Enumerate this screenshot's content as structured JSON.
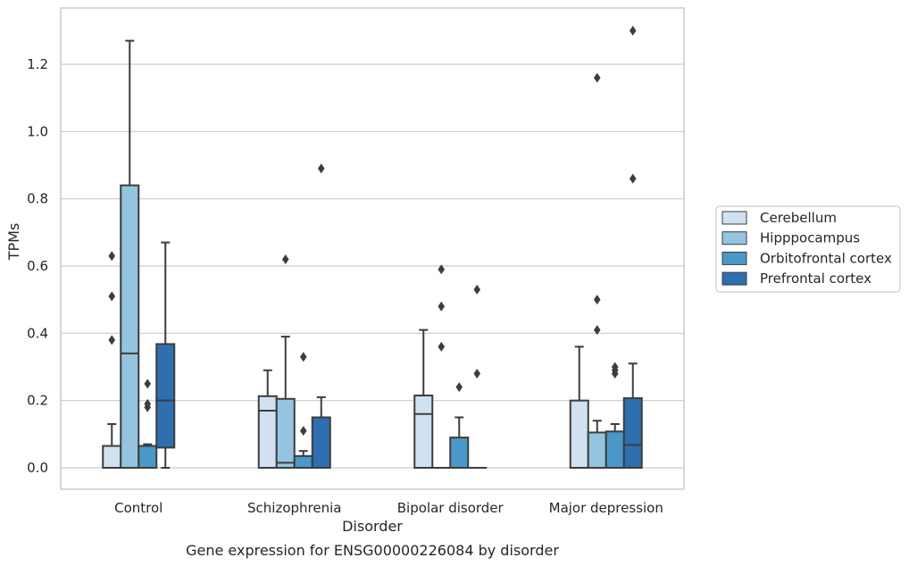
{
  "chart_data": {
    "type": "box",
    "caption": "Gene expression for ENSG00000226084 by disorder",
    "xlabel": "Disorder",
    "ylabel": "TPMs",
    "ylim": [
      -0.065,
      1.375
    ],
    "yticks": [
      "0.0",
      "0.2",
      "0.4",
      "0.6",
      "0.8",
      "1.0",
      "1.2"
    ],
    "grid": true,
    "legend_position": "right",
    "categories": [
      "Control",
      "Schizophrenia",
      "Bipolar disorder",
      "Major depression"
    ],
    "series": [
      {
        "name": "Cerebellum",
        "color": "#d0e1f2",
        "boxes": [
          {
            "min": 0.0,
            "q1": 0.0,
            "median": 0.0,
            "q3": 0.065,
            "max": 0.13,
            "outliers": [
              0.38,
              0.51,
              0.63
            ]
          },
          {
            "min": 0.0,
            "q1": 0.0,
            "median": 0.17,
            "q3": 0.213,
            "max": 0.29,
            "outliers": []
          },
          {
            "min": 0.0,
            "q1": 0.0,
            "median": 0.16,
            "q3": 0.215,
            "max": 0.41,
            "outliers": []
          },
          {
            "min": 0.0,
            "q1": 0.0,
            "median": 0.0,
            "q3": 0.2,
            "max": 0.36,
            "outliers": []
          }
        ]
      },
      {
        "name": "Hipppocampus",
        "color": "#94c4df",
        "boxes": [
          {
            "min": 0.0,
            "q1": 0.0,
            "median": 0.34,
            "q3": 0.84,
            "max": 1.27,
            "outliers": []
          },
          {
            "min": 0.0,
            "q1": 0.0,
            "median": 0.015,
            "q3": 0.205,
            "max": 0.39,
            "outliers": [
              0.62
            ]
          },
          {
            "min": 0.0,
            "q1": 0.0,
            "median": 0.0,
            "q3": 0.0,
            "max": 0.0,
            "outliers": [
              0.36,
              0.48,
              0.59
            ]
          },
          {
            "min": 0.0,
            "q1": 0.0,
            "median": 0.0,
            "q3": 0.105,
            "max": 0.14,
            "outliers": [
              0.41,
              0.5,
              1.16
            ]
          }
        ]
      },
      {
        "name": "Orbitofrontal cortex",
        "color": "#4a98c9",
        "boxes": [
          {
            "min": 0.0,
            "q1": 0.0,
            "median": 0.0,
            "q3": 0.065,
            "max": 0.07,
            "outliers": [
              0.18,
              0.19,
              0.25
            ]
          },
          {
            "min": 0.0,
            "q1": 0.0,
            "median": 0.0,
            "q3": 0.035,
            "max": 0.05,
            "outliers": [
              0.11,
              0.33
            ]
          },
          {
            "min": 0.0,
            "q1": 0.0,
            "median": 0.0,
            "q3": 0.09,
            "max": 0.15,
            "outliers": [
              0.24
            ]
          },
          {
            "min": 0.0,
            "q1": 0.0,
            "median": 0.0,
            "q3": 0.108,
            "max": 0.13,
            "outliers": [
              0.28,
              0.29,
              0.3
            ]
          }
        ]
      },
      {
        "name": "Prefrontal cortex",
        "color": "#2e6fb0",
        "boxes": [
          {
            "min": 0.0,
            "q1": 0.06,
            "median": 0.2,
            "q3": 0.368,
            "max": 0.67,
            "outliers": []
          },
          {
            "min": 0.0,
            "q1": 0.0,
            "median": 0.0,
            "q3": 0.15,
            "max": 0.21,
            "outliers": [
              0.89
            ]
          },
          {
            "min": 0.0,
            "q1": 0.0,
            "median": 0.0,
            "q3": 0.0,
            "max": 0.0,
            "outliers": [
              0.28,
              0.53
            ]
          },
          {
            "min": 0.0,
            "q1": 0.0,
            "median": 0.068,
            "q3": 0.207,
            "max": 0.31,
            "outliers": [
              0.86,
              1.3
            ]
          }
        ]
      }
    ]
  }
}
